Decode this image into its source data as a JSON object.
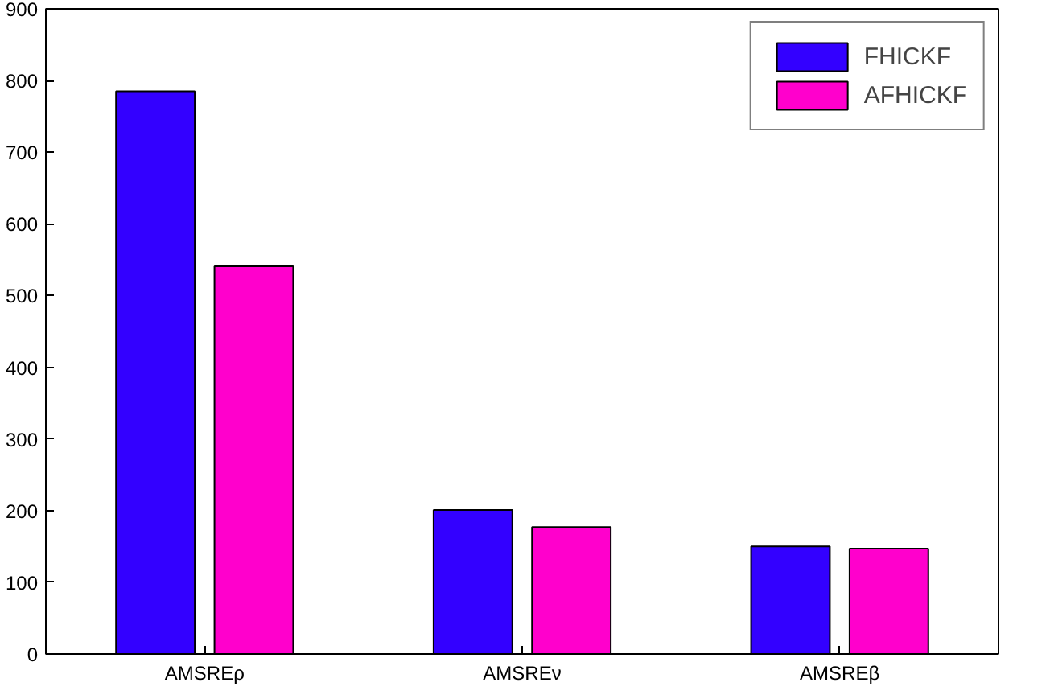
{
  "chart_data": {
    "type": "bar",
    "categories": [
      "AMSREρ",
      "AMSREν",
      "AMSREβ"
    ],
    "series": [
      {
        "name": "FHICKF",
        "color": "#3300ff",
        "values": [
          785,
          201,
          150
        ]
      },
      {
        "name": "AFHICKF",
        "color": "#ff00cc",
        "values": [
          541,
          177,
          147
        ]
      }
    ],
    "ylim": [
      0,
      900
    ],
    "yticks": [
      0,
      100,
      200,
      300,
      400,
      500,
      600,
      700,
      800,
      900
    ],
    "grid": false,
    "legend": "top right"
  }
}
